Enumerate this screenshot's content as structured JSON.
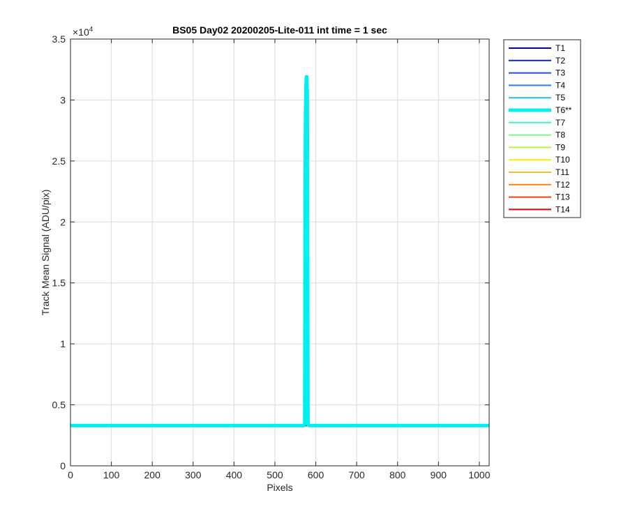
{
  "chart_data": {
    "type": "line",
    "title": "BS05 Day02 20200205-Lite-011 int time = 1 sec",
    "xlabel": "Pixels",
    "ylabel": "Track Mean Signal (ADU/pix)",
    "xlim": [
      0,
      1024
    ],
    "ylim": [
      0,
      35000
    ],
    "xticks": [
      0,
      100,
      200,
      300,
      400,
      500,
      600,
      700,
      800,
      900,
      1000
    ],
    "yticks": [
      0,
      5000,
      10000,
      15000,
      20000,
      25000,
      30000,
      35000
    ],
    "ytick_labels": [
      "0",
      "0.5",
      "1",
      "1.5",
      "2",
      "2.5",
      "3",
      "3.5"
    ],
    "y_exponent_label": "×10",
    "y_exponent_power": "4",
    "grid": true,
    "legend_position": "outside-right",
    "series": [
      {
        "name": "T1",
        "color": "#0000ad",
        "width": 2,
        "baseline": 3300
      },
      {
        "name": "T2",
        "color": "#0a1fd6",
        "width": 2,
        "baseline": 3300
      },
      {
        "name": "T3",
        "color": "#1e4fe8",
        "width": 2,
        "baseline": 3300
      },
      {
        "name": "T4",
        "color": "#2b7fe8",
        "width": 2,
        "baseline": 3300
      },
      {
        "name": "T5",
        "color": "#22b8f0",
        "width": 2,
        "baseline": 3300
      },
      {
        "name": "T6**",
        "color": "#00f0f0",
        "width": 5,
        "baseline": 3300,
        "peak": {
          "x": [
            571,
            573,
            574,
            575,
            576,
            577,
            578,
            579,
            580,
            581,
            583
          ],
          "y": [
            3300,
            3400,
            22000,
            29000,
            31000,
            31900,
            31900,
            30500,
            22000,
            3400,
            3300
          ]
        }
      },
      {
        "name": "T7",
        "color": "#40f0c8",
        "width": 2,
        "baseline": 3300
      },
      {
        "name": "T8",
        "color": "#80f090",
        "width": 2,
        "baseline": 3300
      },
      {
        "name": "T9",
        "color": "#c0f040",
        "width": 2,
        "baseline": 3300
      },
      {
        "name": "T10",
        "color": "#f0f000",
        "width": 2,
        "baseline": 3300
      },
      {
        "name": "T11",
        "color": "#f0c020",
        "width": 2,
        "baseline": 3300
      },
      {
        "name": "T12",
        "color": "#f08020",
        "width": 2,
        "baseline": 3300
      },
      {
        "name": "T13",
        "color": "#f04010",
        "width": 2,
        "baseline": 3300
      },
      {
        "name": "T14",
        "color": "#e00000",
        "width": 2,
        "baseline": 3300
      }
    ]
  }
}
